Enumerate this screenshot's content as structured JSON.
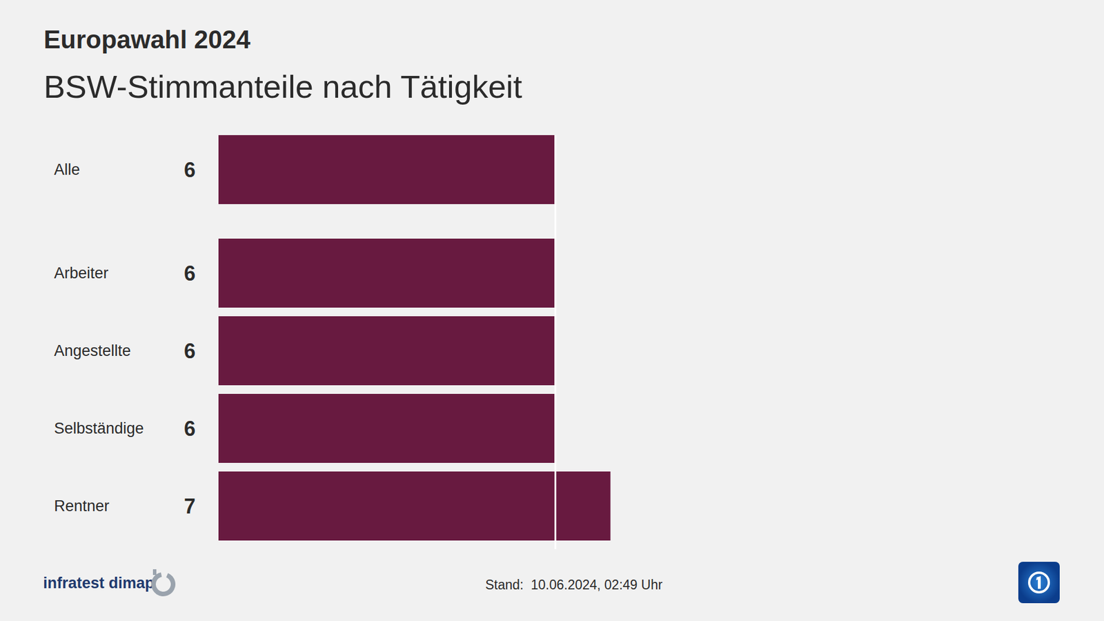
{
  "chart_data": {
    "type": "bar",
    "orientation": "horizontal",
    "header": "Europawahl 2024",
    "title": "BSW-Stimmanteile nach Tätigkeit",
    "categories": [
      "Alle",
      "Arbeiter",
      "Angestellte",
      "Selbständige",
      "Rentner"
    ],
    "values": [
      6,
      6,
      6,
      6,
      7
    ],
    "color": "#681a40",
    "data_labels": true,
    "tick_labels": false,
    "grid": false,
    "source": "infratest dimap",
    "annotations": [
      "Stand:  10.06.2024, 02:49 Uhr"
    ]
  }
}
